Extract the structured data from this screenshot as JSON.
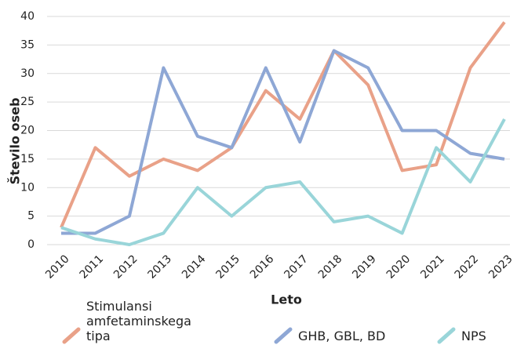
{
  "chart_data": {
    "type": "line",
    "x_label": "Leto",
    "y_label": "Število oseb",
    "categories": [
      "2010",
      "2011",
      "2012",
      "2013",
      "2014",
      "2015",
      "2016",
      "2017",
      "2018",
      "2019",
      "2020",
      "2021",
      "2022",
      "2023"
    ],
    "series": [
      {
        "name": "Stimulansi amfetaminskega tipa",
        "color": "#e9a188",
        "values": [
          3,
          17,
          12,
          15,
          13,
          17,
          27,
          22,
          34,
          28,
          13,
          14,
          31,
          39
        ]
      },
      {
        "name": "GHB, GBL, BD",
        "color": "#8ea7d5",
        "values": [
          2,
          2,
          5,
          31,
          19,
          17,
          31,
          18,
          34,
          31,
          20,
          20,
          16,
          15
        ]
      },
      {
        "name": "NPS",
        "color": "#99d5d9",
        "values": [
          3,
          1,
          0,
          2,
          10,
          5,
          10,
          11,
          4,
          5,
          2,
          17,
          11,
          22
        ]
      }
    ],
    "ylim": [
      0,
      40
    ],
    "yticks": [
      0,
      5,
      10,
      15,
      20,
      25,
      30,
      35,
      40
    ],
    "grid": true,
    "legend": "bottom"
  }
}
